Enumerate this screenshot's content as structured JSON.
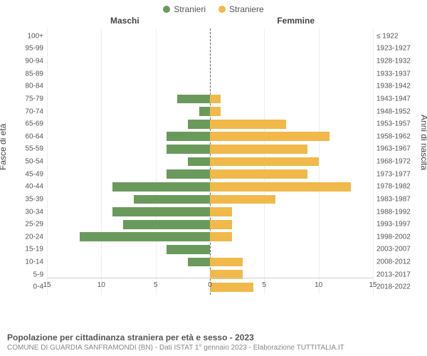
{
  "legend": {
    "male": {
      "label": "Stranieri",
      "color": "#6a9a5b"
    },
    "female": {
      "label": "Straniere",
      "color": "#f1b84a"
    }
  },
  "headers": {
    "left": "Maschi",
    "right": "Femmine"
  },
  "axis_titles": {
    "left": "Fasce di età",
    "right": "Anni di nascita"
  },
  "chart": {
    "type": "population-pyramid",
    "xmax": 15,
    "xticks": [
      15,
      10,
      5,
      0,
      5,
      10,
      15
    ],
    "background_color": "#ffffff",
    "grid_color": "#eeeeee",
    "center_line_color": "#666666",
    "bar_height_ratio": 0.72,
    "rows": [
      {
        "age": "100+",
        "birth": "≤ 1922",
        "m": 0,
        "f": 0
      },
      {
        "age": "95-99",
        "birth": "1923-1927",
        "m": 0,
        "f": 0
      },
      {
        "age": "90-94",
        "birth": "1928-1932",
        "m": 0,
        "f": 0
      },
      {
        "age": "85-89",
        "birth": "1933-1937",
        "m": 0,
        "f": 0
      },
      {
        "age": "80-84",
        "birth": "1938-1942",
        "m": 0,
        "f": 0
      },
      {
        "age": "75-79",
        "birth": "1943-1947",
        "m": 3,
        "f": 1
      },
      {
        "age": "70-74",
        "birth": "1948-1952",
        "m": 1,
        "f": 1
      },
      {
        "age": "65-69",
        "birth": "1953-1957",
        "m": 2,
        "f": 7
      },
      {
        "age": "60-64",
        "birth": "1958-1962",
        "m": 4,
        "f": 11
      },
      {
        "age": "55-59",
        "birth": "1963-1967",
        "m": 4,
        "f": 9
      },
      {
        "age": "50-54",
        "birth": "1968-1972",
        "m": 2,
        "f": 10
      },
      {
        "age": "45-49",
        "birth": "1973-1977",
        "m": 4,
        "f": 9
      },
      {
        "age": "40-44",
        "birth": "1978-1982",
        "m": 9,
        "f": 13
      },
      {
        "age": "35-39",
        "birth": "1983-1987",
        "m": 7,
        "f": 6
      },
      {
        "age": "30-34",
        "birth": "1988-1992",
        "m": 9,
        "f": 2
      },
      {
        "age": "25-29",
        "birth": "1993-1997",
        "m": 8,
        "f": 2
      },
      {
        "age": "20-24",
        "birth": "1998-2002",
        "m": 12,
        "f": 2
      },
      {
        "age": "15-19",
        "birth": "2003-2007",
        "m": 4,
        "f": 0
      },
      {
        "age": "10-14",
        "birth": "2008-2012",
        "m": 2,
        "f": 3
      },
      {
        "age": "5-9",
        "birth": "2013-2017",
        "m": 0,
        "f": 3
      },
      {
        "age": "0-4",
        "birth": "2018-2022",
        "m": 0,
        "f": 4
      }
    ]
  },
  "footer": {
    "title": "Popolazione per cittadinanza straniera per età e sesso - 2023",
    "subtitle": "COMUNE DI GUARDIA SANFRAMONDI (BN) - Dati ISTAT 1° gennaio 2023 - Elaborazione TUTTITALIA.IT"
  }
}
